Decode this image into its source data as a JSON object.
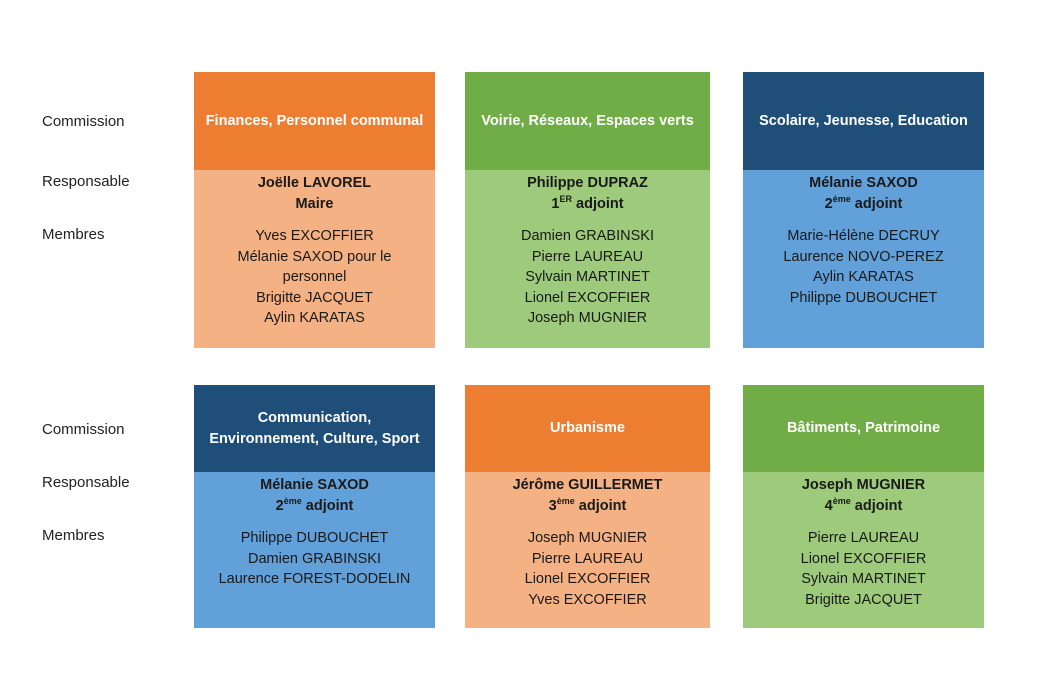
{
  "labels": {
    "commission": "Commission",
    "responsable": "Responsable",
    "membres": "Membres"
  },
  "colors": {
    "orange_header": "#ED7D31",
    "orange_body": "#F4B183",
    "green_header": "#70AD47",
    "green_body": "#9DCA7B",
    "blue_header": "#1F4E79",
    "blue_body": "#62A0D9"
  },
  "commissions": [
    {
      "title": "Finances, Personnel communal",
      "responsable": "Joëlle LAVOREL",
      "role": "Maire",
      "role_sup": "",
      "role_suffix": "",
      "members": [
        "Yves EXCOFFIER",
        "Mélanie SAXOD pour le",
        "personnel",
        "Brigitte JACQUET",
        "Aylin KARATAS"
      ]
    },
    {
      "title": "Voirie, Réseaux, Espaces verts",
      "responsable": "Philippe DUPRAZ",
      "role": "1",
      "role_sup": "ER",
      "role_suffix": " adjoint",
      "members": [
        "Damien GRABINSKI",
        "Pierre LAUREAU",
        "Sylvain MARTINET",
        "Lionel EXCOFFIER",
        "Joseph MUGNIER"
      ]
    },
    {
      "title": "Scolaire, Jeunesse, Education",
      "responsable": "Mélanie SAXOD",
      "role": "2",
      "role_sup": "ème",
      "role_suffix": " adjoint",
      "members": [
        "Marie-Hélène DECRUY",
        "Laurence NOVO-PEREZ",
        "Aylin KARATAS",
        "Philippe DUBOUCHET"
      ]
    },
    {
      "title_line1": "Communication,",
      "title_line2": "Environnement, Culture, Sport",
      "responsable": "Mélanie SAXOD",
      "role": "2",
      "role_sup": "ème",
      "role_suffix": " adjoint",
      "members": [
        "Philippe DUBOUCHET",
        "Damien GRABINSKI",
        "Laurence FOREST-DODELIN"
      ]
    },
    {
      "title": "Urbanisme",
      "responsable": "Jérôme GUILLERMET",
      "role": "3",
      "role_sup": "ème",
      "role_suffix": " adjoint",
      "members": [
        "Joseph MUGNIER",
        "Pierre LAUREAU",
        "Lionel EXCOFFIER",
        "Yves EXCOFFIER"
      ]
    },
    {
      "title": "Bâtiments, Patrimoine",
      "responsable": "Joseph MUGNIER",
      "role": "4",
      "role_sup": "ème",
      "role_suffix": " adjoint",
      "members": [
        "Pierre LAUREAU",
        "Lionel EXCOFFIER",
        "Sylvain MARTINET",
        "Brigitte JACQUET"
      ]
    }
  ]
}
